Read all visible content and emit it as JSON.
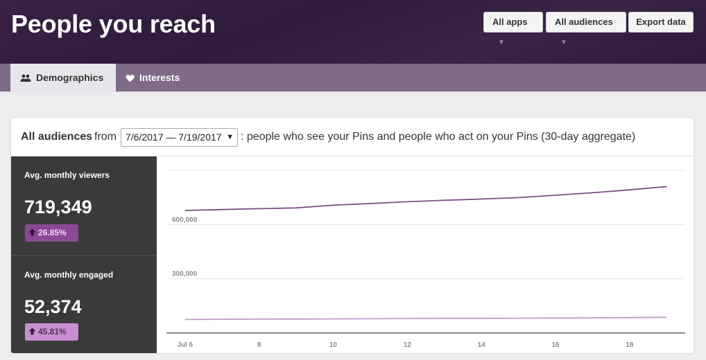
{
  "header": {
    "title": "People you reach",
    "apps_label": "All apps",
    "audiences_label": "All audiences",
    "export_label": "Export data"
  },
  "tabs": [
    {
      "label": "Demographics",
      "icon": "people-icon",
      "active": true
    },
    {
      "label": "Interests",
      "icon": "heart-icon",
      "active": false
    }
  ],
  "card": {
    "audience_label": "All audiences",
    "from_label": "from",
    "date_range": "7/6/2017 — 7/19/2017",
    "description": ": people who see your Pins and people who act on your Pins (30-day aggregate)"
  },
  "stats": [
    {
      "label": "Avg. monthly viewers",
      "value": "719,349",
      "change": "26.85%"
    },
    {
      "label": "Avg. monthly engaged",
      "value": "52,374",
      "change": "45.81%"
    }
  ],
  "colors": {
    "viewers_line": "#7a4d86",
    "engaged_line": "#c29acb"
  },
  "chart_data": {
    "type": "line",
    "x_tick_labels": [
      "Jul 6",
      "8",
      "10",
      "12",
      "14",
      "16",
      "18"
    ],
    "x_tick_days": [
      6,
      8,
      10,
      12,
      14,
      16,
      18
    ],
    "y_tick_labels": [
      "600,000",
      "300,000"
    ],
    "y_tick_values": [
      600000,
      300000
    ],
    "ylim": [
      0,
      900000
    ],
    "xlim": [
      5.5,
      19.5
    ],
    "grid": true,
    "series": [
      {
        "key": "viewers",
        "x": [
          6,
          7,
          8,
          9,
          10,
          11,
          12,
          13,
          14,
          15,
          16,
          17,
          18,
          19
        ],
        "values": [
          678000,
          683000,
          688000,
          692000,
          707000,
          716000,
          726000,
          734000,
          741000,
          749000,
          762000,
          776000,
          792000,
          810000
        ]
      },
      {
        "key": "engaged",
        "x": [
          6,
          7,
          8,
          9,
          10,
          11,
          12,
          13,
          14,
          15,
          16,
          17,
          18,
          19
        ],
        "values": [
          75000,
          76000,
          77000,
          77500,
          78000,
          79000,
          80000,
          81000,
          81500,
          82000,
          83000,
          84000,
          85500,
          87000
        ]
      }
    ]
  }
}
